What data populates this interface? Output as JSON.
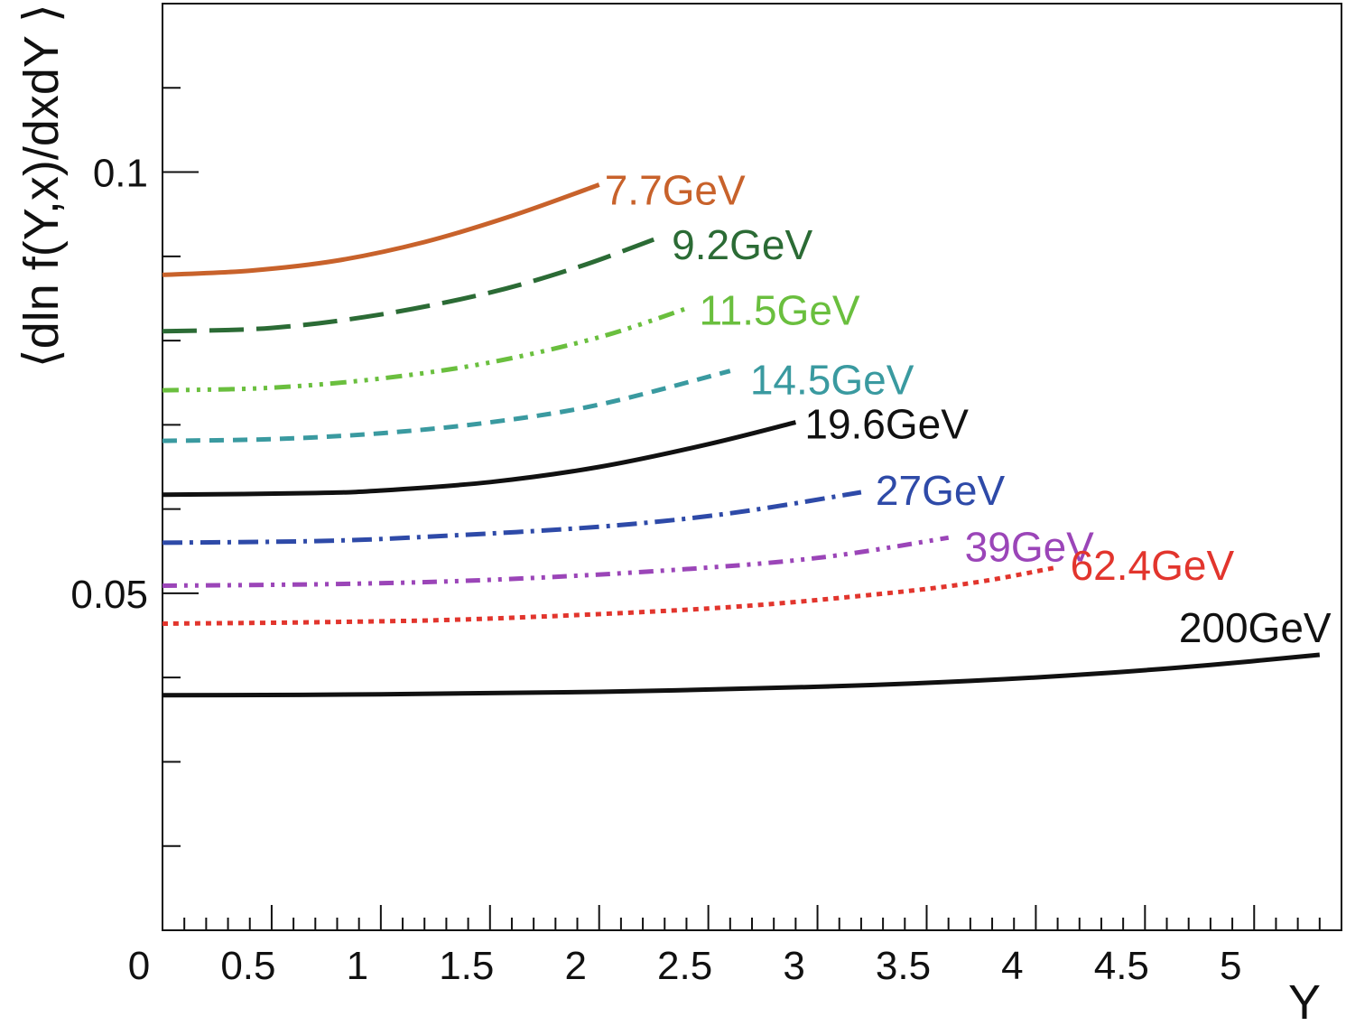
{
  "chart_data": {
    "type": "line",
    "title": "",
    "xlabel": "Y",
    "ylabel": "⟨dln f(Y,x)/dxdY ⟩",
    "xlim": [
      0,
      5.4
    ],
    "ylim": [
      0.01,
      0.12
    ],
    "x_ticks": [
      {
        "v": 0,
        "label": "0"
      },
      {
        "v": 0.5,
        "label": "0.5"
      },
      {
        "v": 1,
        "label": "1"
      },
      {
        "v": 1.5,
        "label": "1.5"
      },
      {
        "v": 2,
        "label": "2"
      },
      {
        "v": 2.5,
        "label": "2.5"
      },
      {
        "v": 3,
        "label": "3"
      },
      {
        "v": 3.5,
        "label": "3.5"
      },
      {
        "v": 4,
        "label": "4"
      },
      {
        "v": 4.5,
        "label": "4.5"
      },
      {
        "v": 5,
        "label": "5"
      }
    ],
    "y_ticks": [
      {
        "v": 0.05,
        "label": "0.05"
      },
      {
        "v": 0.1,
        "label": "0.1"
      }
    ],
    "grid": false,
    "legend": "inline labels at curve ends",
    "series": [
      {
        "name": "7.7GeV",
        "color": "#c8622b",
        "dash": "none",
        "width": 5,
        "x": [
          0,
          0.4,
          0.8,
          1.2,
          1.6,
          2.0
        ],
        "y": [
          0.0878,
          0.0883,
          0.0895,
          0.0917,
          0.0948,
          0.0985
        ]
      },
      {
        "name": "9.2GeV",
        "color": "#2b6b35",
        "dash": "38,14",
        "width": 5,
        "x": [
          0,
          0.5,
          1.0,
          1.5,
          1.9,
          2.25
        ],
        "y": [
          0.0811,
          0.0815,
          0.0831,
          0.0857,
          0.0887,
          0.092
        ]
      },
      {
        "name": "11.5GeV",
        "color": "#6abf3e",
        "dash": "18,8,4,8,4,8,4,8",
        "width": 5,
        "x": [
          0,
          0.5,
          1.0,
          1.5,
          2.0,
          2.4
        ],
        "y": [
          0.0741,
          0.0744,
          0.0755,
          0.0774,
          0.0804,
          0.0838
        ]
      },
      {
        "name": "14.5GeV",
        "color": "#3a9aa0",
        "dash": "16,10",
        "width": 5,
        "x": [
          0,
          0.5,
          1.0,
          1.5,
          2.0,
          2.6
        ],
        "y": [
          0.0681,
          0.0683,
          0.069,
          0.0703,
          0.0724,
          0.0764
        ]
      },
      {
        "name": "19.6GeV",
        "color": "#111111",
        "dash": "none",
        "width": 5,
        "x": [
          0,
          0.7,
          1.0,
          1.5,
          2.0,
          2.5,
          2.9
        ],
        "y": [
          0.0617,
          0.0619,
          0.0622,
          0.0632,
          0.065,
          0.0677,
          0.0703
        ]
      },
      {
        "name": "27GeV",
        "color": "#2e4aa8",
        "dash": "22,8,4,8",
        "width": 5,
        "x": [
          0,
          0.7,
          1.2,
          2.0,
          2.6,
          3.2
        ],
        "y": [
          0.056,
          0.0562,
          0.0567,
          0.0579,
          0.0595,
          0.062
        ]
      },
      {
        "name": "39GeV",
        "color": "#9b45b8",
        "dash": "16,8,4,8,4,8",
        "width": 5,
        "x": [
          0,
          0.8,
          1.5,
          2.3,
          3.0,
          3.6
        ],
        "y": [
          0.0509,
          0.0511,
          0.0516,
          0.0527,
          0.0542,
          0.0566
        ]
      },
      {
        "name": "62.4GeV",
        "color": "#e2352d",
        "dash": "6,6",
        "width": 5,
        "x": [
          0,
          0.8,
          1.5,
          2.5,
          3.2,
          3.7,
          4.1
        ],
        "y": [
          0.0464,
          0.0466,
          0.047,
          0.0482,
          0.0497,
          0.0512,
          0.0531
        ]
      },
      {
        "name": "200GeV",
        "color": "#111111",
        "dash": "none",
        "width": 5,
        "x": [
          0,
          1.0,
          2.0,
          3.0,
          3.7,
          4.3,
          4.8,
          5.3
        ],
        "y": [
          0.0379,
          0.038,
          0.0383,
          0.0389,
          0.0396,
          0.0405,
          0.0415,
          0.0427
        ]
      }
    ]
  }
}
